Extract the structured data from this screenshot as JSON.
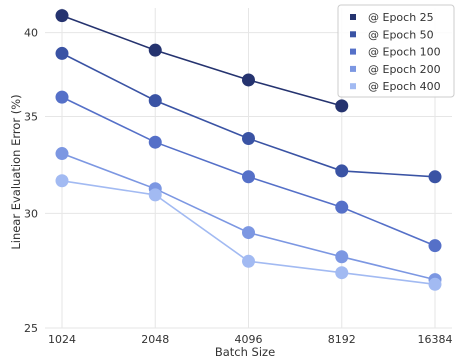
{
  "chart_data": {
    "type": "line",
    "xlabel": "Batch Size",
    "ylabel": "Linear Evaluation Error (%)",
    "categories": [
      "1024",
      "2048",
      "4096",
      "8192",
      "16384"
    ],
    "yticks": [
      "25",
      "30",
      "35",
      "40"
    ],
    "ylim": [
      25,
      41.6
    ],
    "y_scale": "log",
    "grid": true,
    "legend_position": "top-right",
    "series": [
      {
        "name": "@ Epoch 25",
        "color": "#25336f",
        "values": [
          41.1,
          38.9,
          37.1,
          35.6,
          null
        ]
      },
      {
        "name": "@ Epoch 50",
        "color": "#3a53a4",
        "values": [
          38.7,
          35.9,
          33.8,
          32.1,
          31.8
        ]
      },
      {
        "name": "@ Epoch 100",
        "color": "#5570c8",
        "values": [
          36.1,
          33.6,
          31.8,
          30.3,
          28.5
        ]
      },
      {
        "name": "@ Epoch 200",
        "color": "#7c97e2",
        "values": [
          33.0,
          31.2,
          29.1,
          28.0,
          27.0
        ]
      },
      {
        "name": "@ Epoch 400",
        "color": "#a2baf2",
        "values": [
          31.6,
          30.9,
          27.8,
          27.3,
          26.8
        ]
      }
    ]
  }
}
